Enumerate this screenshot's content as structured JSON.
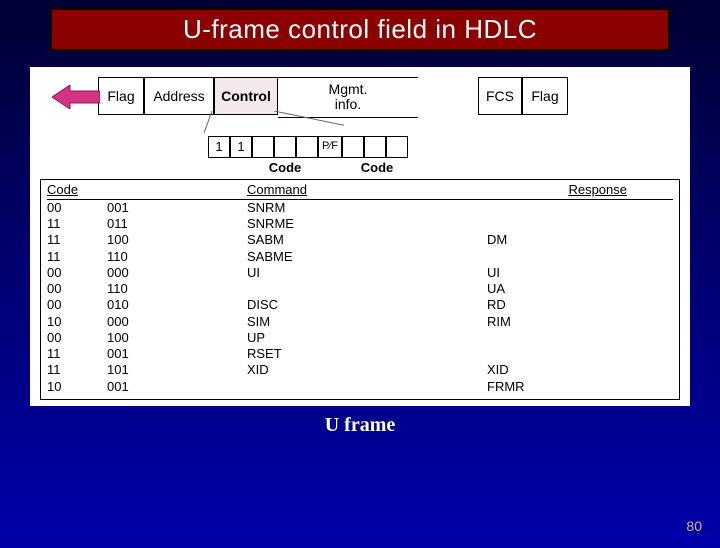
{
  "title": "U-frame control field in HDLC",
  "footer": "U frame",
  "page_number": "80",
  "colors": {
    "title_bg": "#8b0000",
    "title_border": "#000000",
    "title_text": "#ffffff",
    "body_bg_top": "#000033",
    "body_bg_bottom": "#0000aa",
    "diagram_bg": "#ffffff",
    "control_fill": "#f5e8ea",
    "arrow_fill": "#d63384",
    "arrow_stroke": "#8b1a5a",
    "page_num_color": "#d2b48c"
  },
  "frame_fields": {
    "flag1": "Flag",
    "address": "Address",
    "control": "Control",
    "mgmt": "Mgmt.\ninfo.",
    "fcs": "FCS",
    "flag2": "Flag"
  },
  "control_bits": {
    "b0": "1",
    "b1": "1",
    "b2": "",
    "b3": "",
    "b4": "",
    "pf": "P∕F",
    "b5": "",
    "b6": "",
    "b7": "",
    "label_left": "Code",
    "label_right": "Code"
  },
  "table": {
    "headers": {
      "code": "Code",
      "command": "Command",
      "response": "Response"
    },
    "rows": [
      {
        "c1": "00",
        "c2": "001",
        "cmd": "SNRM",
        "resp": ""
      },
      {
        "c1": "11",
        "c2": "011",
        "cmd": "SNRME",
        "resp": ""
      },
      {
        "c1": "11",
        "c2": "100",
        "cmd": "SABM",
        "resp": "DM"
      },
      {
        "c1": "11",
        "c2": "110",
        "cmd": "SABME",
        "resp": ""
      },
      {
        "c1": "00",
        "c2": "000",
        "cmd": "UI",
        "resp": "UI"
      },
      {
        "c1": "00",
        "c2": "110",
        "cmd": "",
        "resp": "UA"
      },
      {
        "c1": "00",
        "c2": "010",
        "cmd": "DISC",
        "resp": "RD"
      },
      {
        "c1": "10",
        "c2": "000",
        "cmd": "SIM",
        "resp": "RIM"
      },
      {
        "c1": "00",
        "c2": "100",
        "cmd": "UP",
        "resp": ""
      },
      {
        "c1": "11",
        "c2": "001",
        "cmd": "RSET",
        "resp": ""
      },
      {
        "c1": "11",
        "c2": "101",
        "cmd": "XID",
        "resp": "XID"
      },
      {
        "c1": "10",
        "c2": "001",
        "cmd": "",
        "resp": "FRMR"
      }
    ]
  }
}
